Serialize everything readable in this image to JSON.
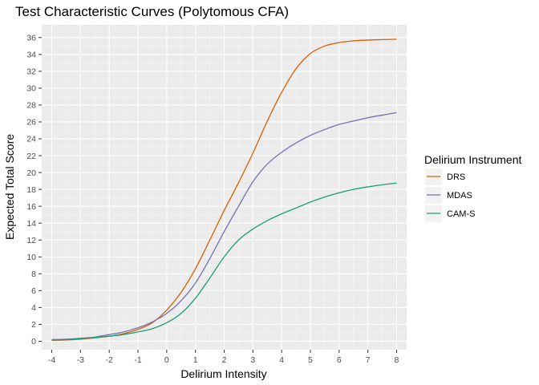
{
  "chart_data": {
    "type": "line",
    "title": "Test Characteristic Curves (Polytomous CFA)",
    "xlabel": "Delirium Intensity",
    "ylabel": "Expected Total Score",
    "xlim": [
      -4.35,
      8.35
    ],
    "ylim": [
      -1.0,
      37.5
    ],
    "x_ticks": [
      -4,
      -3,
      -2,
      -1,
      0,
      1,
      2,
      3,
      4,
      5,
      6,
      7,
      8
    ],
    "x_tick_labels": [
      "-4",
      "-3",
      "-2",
      "-1",
      "0",
      "1",
      "2",
      "3",
      "4",
      "5",
      "6",
      "7",
      "8"
    ],
    "y_ticks": [
      0,
      2,
      4,
      6,
      8,
      10,
      12,
      14,
      16,
      18,
      20,
      22,
      24,
      26,
      28,
      30,
      32,
      34,
      36
    ],
    "y_tick_labels": [
      "0",
      "2",
      "4",
      "6",
      "8",
      "10",
      "12",
      "14",
      "16",
      "18",
      "20",
      "22",
      "24",
      "26",
      "28",
      "30",
      "32",
      "34",
      "36"
    ],
    "grid": true,
    "legend_title": "Delirium Instrument",
    "legend_position": "right",
    "x": [
      -4,
      -3.5,
      -3,
      -2.5,
      -2,
      -1.5,
      -1,
      -0.5,
      0,
      0.5,
      1,
      1.5,
      2,
      2.5,
      3,
      3.5,
      4,
      4.5,
      5,
      5.5,
      6,
      6.5,
      7,
      7.5,
      8
    ],
    "series": [
      {
        "name": "DRS",
        "color": "#d95f02",
        "values": [
          0.1,
          0.15,
          0.25,
          0.4,
          0.6,
          0.9,
          1.4,
          2.2,
          3.7,
          5.8,
          8.6,
          12.0,
          15.5,
          18.8,
          22.3,
          26.1,
          29.5,
          32.3,
          34.1,
          35.0,
          35.4,
          35.6,
          35.7,
          35.75,
          35.8
        ]
      },
      {
        "name": "MDAS",
        "color": "#7570b3",
        "values": [
          0.2,
          0.25,
          0.35,
          0.5,
          0.8,
          1.1,
          1.6,
          2.3,
          3.3,
          4.8,
          6.9,
          9.8,
          13.0,
          16.0,
          18.9,
          21.0,
          22.4,
          23.5,
          24.4,
          25.1,
          25.7,
          26.1,
          26.5,
          26.8,
          27.1
        ]
      },
      {
        "name": "CAM-S",
        "color": "#1b9e77",
        "values": [
          0.15,
          0.2,
          0.3,
          0.45,
          0.6,
          0.8,
          1.1,
          1.5,
          2.2,
          3.3,
          5.1,
          7.5,
          10.0,
          12.0,
          13.3,
          14.3,
          15.1,
          15.8,
          16.5,
          17.1,
          17.6,
          18.0,
          18.3,
          18.55,
          18.75
        ]
      }
    ]
  }
}
